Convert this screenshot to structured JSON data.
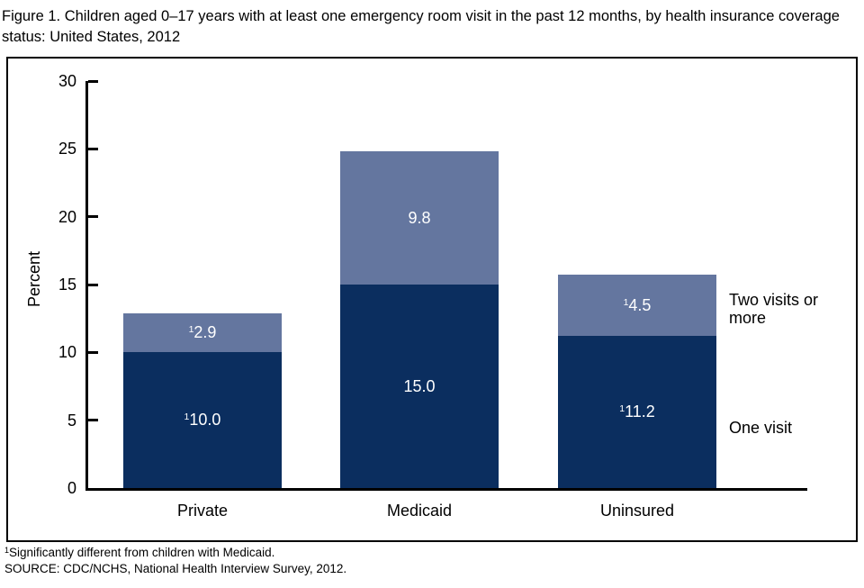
{
  "figure_title": "Figure 1. Children aged 0–17 years with at least one emergency room visit in the past 12 months, by health insurance coverage status: United States, 2012",
  "footnotes": {
    "note_marker": "1",
    "note_text": "Significantly different from children with Medicaid.",
    "source_text": "SOURCE: CDC/NCHS, National Health Interview Survey, 2012."
  },
  "chart_data": {
    "type": "bar",
    "stacked": true,
    "categories": [
      "Private",
      "Medicaid",
      "Uninsured"
    ],
    "series": [
      {
        "name": "One visit",
        "color": "#0b2e5f",
        "values": [
          10.0,
          15.0,
          11.2
        ],
        "value_labels": [
          "10.0",
          "15.0",
          "11.2"
        ],
        "label_superscripts": [
          "1",
          "",
          "1"
        ]
      },
      {
        "name": "Two visits or more",
        "color": "#64769f",
        "values": [
          2.9,
          9.8,
          4.5
        ],
        "value_labels": [
          "2.9",
          "9.8",
          "4.5"
        ],
        "label_superscripts": [
          "1",
          "",
          "1"
        ]
      }
    ],
    "totals": [
      12.9,
      24.8,
      15.7
    ],
    "ylabel": "Percent",
    "ylim": [
      0,
      30
    ],
    "yticks": [
      30,
      25,
      20,
      15,
      10,
      5,
      0
    ],
    "grid": false,
    "legend_position": "right-inside",
    "legend": {
      "two_visits_label": "Two visits or more",
      "one_visit_label": "One visit"
    }
  }
}
